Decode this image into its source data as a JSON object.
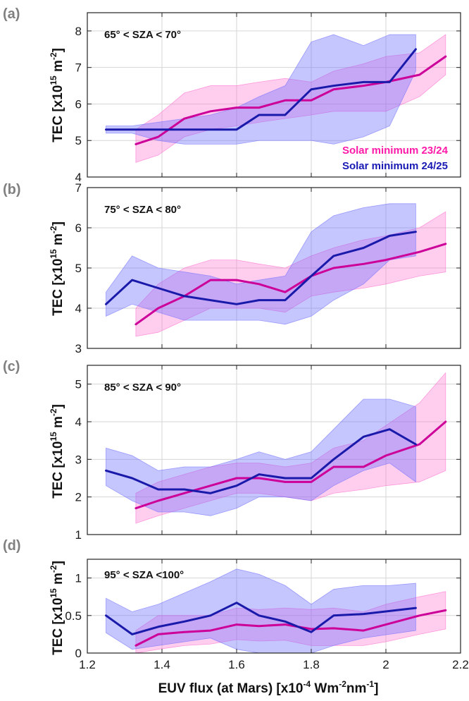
{
  "chart_data": [
    {
      "type": "line",
      "panel_label": "(a)",
      "annotation": "65° < SZA < 70°",
      "ylabel": "TEC [x10",
      "ylabel_exp": "15",
      "ylabel_unit": " m",
      "ylabel_unit_exp": "-2",
      "ylabel_close": "]",
      "ylim": [
        4,
        8.5
      ],
      "yticks": [
        4,
        5,
        6,
        7,
        8
      ],
      "ytick_labels": [
        "4",
        "5",
        "6",
        "7",
        "8"
      ],
      "xlim": [
        1.2,
        2.2
      ],
      "xticks": [
        1.2,
        1.4,
        1.6,
        1.8,
        2.0,
        2.2
      ],
      "grid": true,
      "legend": {
        "placement": "bottom-right",
        "entries": [
          "Solar minimum 23/24",
          "Solar minimum 24/25"
        ]
      },
      "series": [
        {
          "name": "Solar minimum 23/24",
          "color": "#cc0099",
          "band_color": "#ff66cc",
          "x": [
            1.33,
            1.39,
            1.46,
            1.53,
            1.6,
            1.66,
            1.73,
            1.8,
            1.86,
            1.94,
            2.0,
            2.09,
            2.16
          ],
          "y": [
            4.9,
            5.1,
            5.6,
            5.8,
            5.9,
            5.9,
            6.1,
            6.1,
            6.4,
            6.5,
            6.6,
            6.8,
            7.3
          ],
          "lower": [
            4.4,
            4.6,
            5.1,
            5.3,
            5.4,
            5.5,
            5.6,
            5.7,
            5.8,
            5.8,
            5.8,
            6.2,
            6.8
          ],
          "upper": [
            5.3,
            5.7,
            6.3,
            6.5,
            6.5,
            6.6,
            6.7,
            6.6,
            6.9,
            7.1,
            7.3,
            7.4,
            7.9
          ]
        },
        {
          "name": "Solar minimum 24/25",
          "color": "#1a1aaa",
          "band_color": "#6a6aff",
          "x": [
            1.25,
            1.32,
            1.39,
            1.46,
            1.53,
            1.6,
            1.66,
            1.73,
            1.8,
            1.86,
            1.94,
            2.01,
            2.08
          ],
          "y": [
            5.3,
            5.3,
            5.3,
            5.3,
            5.3,
            5.3,
            5.7,
            5.7,
            6.4,
            6.5,
            6.6,
            6.6,
            7.5
          ],
          "lower": [
            5.2,
            5.2,
            5.0,
            4.9,
            4.9,
            4.9,
            5.0,
            5.0,
            5.0,
            4.9,
            5.1,
            5.4,
            6.9
          ],
          "upper": [
            5.4,
            5.4,
            5.5,
            5.6,
            5.7,
            5.9,
            6.2,
            6.5,
            7.7,
            7.9,
            7.6,
            7.9,
            7.9
          ]
        }
      ]
    },
    {
      "type": "line",
      "panel_label": "(b)",
      "annotation": "75° < SZA < 80°",
      "ylabel": "TEC [x10",
      "ylabel_exp": "15",
      "ylabel_unit": " m",
      "ylabel_unit_exp": "-2",
      "ylabel_close": "]",
      "ylim": [
        3,
        7
      ],
      "yticks": [
        3,
        4,
        5,
        6,
        7
      ],
      "ytick_labels": [
        "3",
        "4",
        "5",
        "6",
        "7"
      ],
      "xlim": [
        1.2,
        2.2
      ],
      "xticks": [
        1.2,
        1.4,
        1.6,
        1.8,
        2.0,
        2.2
      ],
      "grid": true,
      "series": [
        {
          "name": "Solar minimum 23/24",
          "color": "#cc0099",
          "band_color": "#ff66cc",
          "x": [
            1.33,
            1.39,
            1.46,
            1.53,
            1.6,
            1.66,
            1.73,
            1.8,
            1.86,
            1.94,
            2.0,
            2.09,
            2.16
          ],
          "y": [
            3.6,
            4.0,
            4.3,
            4.7,
            4.7,
            4.6,
            4.4,
            4.8,
            5.0,
            5.1,
            5.2,
            5.4,
            5.6
          ],
          "lower": [
            3.3,
            3.4,
            3.7,
            4.0,
            4.0,
            4.0,
            3.9,
            4.3,
            4.4,
            4.5,
            4.6,
            4.8,
            4.9
          ],
          "upper": [
            4.0,
            4.6,
            5.0,
            5.2,
            5.2,
            5.1,
            5.0,
            5.3,
            5.5,
            5.7,
            5.8,
            6.0,
            6.4
          ]
        },
        {
          "name": "Solar minimum 24/25",
          "color": "#1a1aaa",
          "band_color": "#6a6aff",
          "x": [
            1.25,
            1.32,
            1.39,
            1.46,
            1.53,
            1.6,
            1.66,
            1.73,
            1.8,
            1.86,
            1.94,
            2.01,
            2.08
          ],
          "y": [
            4.1,
            4.7,
            4.5,
            4.3,
            4.2,
            4.1,
            4.2,
            4.2,
            4.8,
            5.3,
            5.5,
            5.8,
            5.9
          ],
          "lower": [
            3.8,
            4.1,
            3.9,
            3.7,
            3.7,
            3.7,
            3.7,
            3.6,
            3.8,
            4.2,
            4.6,
            5.2,
            5.3
          ],
          "upper": [
            4.4,
            5.3,
            5.0,
            4.9,
            4.8,
            4.6,
            4.7,
            4.8,
            5.9,
            6.3,
            6.5,
            6.6,
            6.6
          ]
        }
      ]
    },
    {
      "type": "line",
      "panel_label": "(c)",
      "annotation": "85° < SZA < 90°",
      "ylabel": "TEC [x10",
      "ylabel_exp": "15",
      "ylabel_unit": " m",
      "ylabel_unit_exp": "-2",
      "ylabel_close": "]",
      "ylim": [
        1,
        5.5
      ],
      "yticks": [
        1,
        2,
        3,
        4,
        5
      ],
      "ytick_labels": [
        "1",
        "2",
        "3",
        "4",
        "5"
      ],
      "xlim": [
        1.2,
        2.2
      ],
      "xticks": [
        1.2,
        1.4,
        1.6,
        1.8,
        2.0,
        2.2
      ],
      "grid": true,
      "series": [
        {
          "name": "Solar minimum 23/24",
          "color": "#cc0099",
          "band_color": "#ff66cc",
          "x": [
            1.33,
            1.39,
            1.46,
            1.53,
            1.6,
            1.66,
            1.73,
            1.8,
            1.86,
            1.94,
            2.0,
            2.09,
            2.16
          ],
          "y": [
            1.7,
            1.9,
            2.1,
            2.3,
            2.5,
            2.5,
            2.4,
            2.4,
            2.8,
            2.8,
            3.1,
            3.4,
            4.0
          ],
          "lower": [
            1.3,
            1.5,
            1.7,
            1.9,
            2.1,
            2.1,
            2.0,
            1.9,
            2.1,
            2.2,
            2.3,
            2.4,
            2.7
          ],
          "upper": [
            2.1,
            2.4,
            2.6,
            2.8,
            2.9,
            2.9,
            2.8,
            2.9,
            3.3,
            3.5,
            3.9,
            4.5,
            5.3
          ]
        },
        {
          "name": "Solar minimum 24/25",
          "color": "#1a1aaa",
          "band_color": "#6a6aff",
          "x": [
            1.25,
            1.32,
            1.39,
            1.46,
            1.53,
            1.6,
            1.66,
            1.73,
            1.8,
            1.86,
            1.94,
            2.01,
            2.08
          ],
          "y": [
            2.7,
            2.5,
            2.2,
            2.2,
            2.1,
            2.3,
            2.6,
            2.5,
            2.5,
            3.0,
            3.6,
            3.8,
            3.4
          ],
          "lower": [
            2.3,
            1.9,
            1.6,
            1.6,
            1.5,
            1.7,
            2.0,
            2.0,
            1.9,
            2.3,
            2.7,
            2.9,
            2.4
          ],
          "upper": [
            3.3,
            3.1,
            2.7,
            2.8,
            2.8,
            3.0,
            3.2,
            3.0,
            3.2,
            3.8,
            4.6,
            4.6,
            4.4
          ]
        }
      ]
    },
    {
      "type": "line",
      "panel_label": "(d)",
      "annotation": "95° < SZA <100°",
      "ylabel": "TEC [x10",
      "ylabel_exp": "15",
      "ylabel_unit": " m",
      "ylabel_unit_exp": "-2",
      "ylabel_close": "]",
      "ylim": [
        0,
        1.25
      ],
      "yticks": [
        0,
        0.5,
        1
      ],
      "ytick_labels": [
        "0",
        "0.5",
        "1"
      ],
      "xlim": [
        1.2,
        2.2
      ],
      "xticks": [
        1.2,
        1.4,
        1.6,
        1.8,
        2.0,
        2.2
      ],
      "xtick_labels": [
        "1.2",
        "1.4",
        "1.6",
        "1.8",
        "2",
        "2.2"
      ],
      "xlabel": "EUV flux (at Mars) [x10",
      "xlabel_exp1": "-4",
      "xlabel_mid": " Wm",
      "xlabel_exp2": "-2",
      "xlabel_mid2": "nm",
      "xlabel_exp3": "-1",
      "xlabel_close": "]",
      "grid": true,
      "series": [
        {
          "name": "Solar minimum 23/24",
          "color": "#cc0099",
          "band_color": "#ff66cc",
          "x": [
            1.33,
            1.39,
            1.46,
            1.53,
            1.6,
            1.66,
            1.73,
            1.8,
            1.86,
            1.94,
            2.0,
            2.09,
            2.16
          ],
          "y": [
            0.1,
            0.25,
            0.28,
            0.3,
            0.38,
            0.36,
            0.38,
            0.32,
            0.33,
            0.3,
            0.38,
            0.5,
            0.57
          ],
          "lower": [
            0.0,
            0.05,
            0.1,
            0.12,
            0.18,
            0.16,
            0.17,
            0.1,
            0.1,
            0.1,
            0.15,
            0.25,
            0.32
          ],
          "upper": [
            0.3,
            0.5,
            0.5,
            0.5,
            0.6,
            0.58,
            0.6,
            0.58,
            0.6,
            0.55,
            0.65,
            0.75,
            0.82
          ]
        },
        {
          "name": "Solar minimum 24/25",
          "color": "#1a1aaa",
          "band_color": "#6a6aff",
          "x": [
            1.25,
            1.32,
            1.39,
            1.46,
            1.53,
            1.6,
            1.66,
            1.73,
            1.8,
            1.86,
            1.94,
            2.01,
            2.08
          ],
          "y": [
            0.5,
            0.25,
            0.35,
            0.42,
            0.5,
            0.67,
            0.5,
            0.42,
            0.28,
            0.5,
            0.52,
            0.56,
            0.6
          ],
          "lower": [
            0.27,
            0.05,
            0.1,
            0.15,
            0.2,
            0.05,
            0.0,
            0.0,
            0.0,
            0.1,
            0.2,
            0.25,
            0.3
          ],
          "upper": [
            0.73,
            0.55,
            0.65,
            0.8,
            0.95,
            1.12,
            1.05,
            0.9,
            0.65,
            0.85,
            0.9,
            0.9,
            0.93
          ]
        }
      ]
    }
  ]
}
